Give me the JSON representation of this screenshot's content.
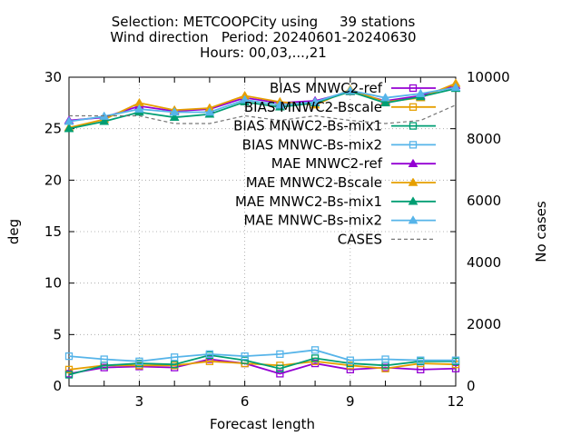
{
  "title_lines": [
    "Selection: METCOOPCity using     39 stations",
    "Wind direction   Period: 20240601-20240630",
    "Hours: 00,03,...,21"
  ],
  "chart_data": {
    "type": "line",
    "xlabel": "Forecast length",
    "ylabel": "deg",
    "y2label": "No cases",
    "xlim": [
      1,
      12
    ],
    "ylim": [
      0,
      30
    ],
    "y2lim": [
      0,
      10000
    ],
    "xticks": [
      "3",
      "6",
      "9",
      "12"
    ],
    "yticks": [
      "0",
      "5",
      "10",
      "15",
      "20",
      "25",
      "30"
    ],
    "y2ticks": [
      "0",
      "2000",
      "4000",
      "6000",
      "8000",
      "10000"
    ],
    "grid": true,
    "legend_position": "top-right",
    "x": [
      1,
      2,
      3,
      4,
      5,
      6,
      7,
      8,
      9,
      10,
      11,
      12
    ],
    "series": [
      {
        "name": "BIAS MNWC2-ref",
        "metric": "BIAS",
        "color": "#9400d3",
        "marker": "square-open",
        "values": [
          1.2,
          1.8,
          1.9,
          1.8,
          2.6,
          2.2,
          1.2,
          2.2,
          1.6,
          1.8,
          1.6,
          1.7
        ]
      },
      {
        "name": "BIAS MNWC2-Bscale",
        "metric": "BIAS",
        "color": "#e69f00",
        "marker": "square-open",
        "values": [
          1.6,
          2.0,
          2.0,
          2.0,
          2.4,
          2.2,
          2.0,
          2.4,
          2.0,
          1.7,
          2.2,
          2.1
        ]
      },
      {
        "name": "BIAS MNWC2-Bs-mix1",
        "metric": "BIAS",
        "color": "#009e73",
        "marker": "square-open",
        "values": [
          1.1,
          2.0,
          2.2,
          2.1,
          3.0,
          2.5,
          1.7,
          2.7,
          2.2,
          2.0,
          2.4,
          2.4
        ]
      },
      {
        "name": "BIAS MNWC-Bs-mix2",
        "metric": "BIAS",
        "color": "#56b4e9",
        "marker": "square-open",
        "values": [
          2.9,
          2.6,
          2.4,
          2.8,
          3.1,
          2.9,
          3.1,
          3.5,
          2.5,
          2.6,
          2.5,
          2.5
        ]
      },
      {
        "name": "MAE MNWC2-ref",
        "metric": "MAE",
        "color": "#9400d3",
        "marker": "triangle-filled",
        "values": [
          25.8,
          26.1,
          27.2,
          26.7,
          26.9,
          28.0,
          27.5,
          27.7,
          28.6,
          27.7,
          28.2,
          29.2
        ]
      },
      {
        "name": "MAE MNWC2-Bscale",
        "metric": "MAE",
        "color": "#e69f00",
        "marker": "triangle-filled",
        "values": [
          25.1,
          25.9,
          27.5,
          26.8,
          27.0,
          28.2,
          27.6,
          27.3,
          28.8,
          27.6,
          28.0,
          29.4
        ]
      },
      {
        "name": "MAE MNWC2-Bs-mix1",
        "metric": "MAE",
        "color": "#009e73",
        "marker": "triangle-filled",
        "values": [
          25.0,
          25.7,
          26.6,
          26.1,
          26.4,
          27.6,
          27.1,
          27.5,
          28.6,
          27.5,
          28.1,
          28.9
        ]
      },
      {
        "name": "MAE MNWC-Bs-mix2",
        "metric": "MAE",
        "color": "#56b4e9",
        "marker": "triangle-filled",
        "values": [
          25.7,
          26.2,
          26.9,
          26.6,
          26.6,
          27.8,
          27.3,
          27.6,
          28.7,
          28.0,
          28.4,
          29.0
        ]
      },
      {
        "name": "CASES",
        "metric": "CASES",
        "axis": "y2",
        "color": "#777777",
        "dash": true,
        "values": [
          8750,
          8750,
          8750,
          8500,
          8500,
          8750,
          8600,
          8750,
          8600,
          8500,
          8600,
          9100
        ]
      }
    ]
  }
}
